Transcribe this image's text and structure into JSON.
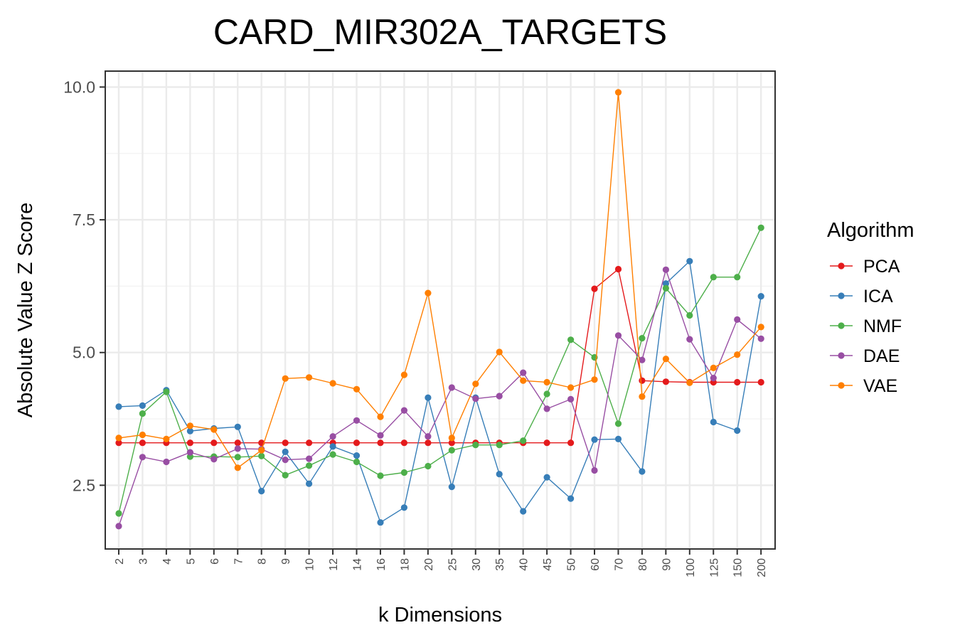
{
  "chart_data": {
    "type": "line",
    "title": "CARD_MIR302A_TARGETS",
    "xlabel": "k Dimensions",
    "ylabel": "Absolute Value Z Score",
    "categories": [
      "2",
      "3",
      "4",
      "5",
      "6",
      "7",
      "8",
      "9",
      "10",
      "12",
      "14",
      "16",
      "18",
      "20",
      "25",
      "30",
      "35",
      "40",
      "45",
      "50",
      "60",
      "70",
      "80",
      "90",
      "100",
      "125",
      "150",
      "200"
    ],
    "yticks": [
      2.5,
      5.0,
      7.5,
      10.0
    ],
    "ytick_labels": [
      "2.5",
      "5.0",
      "7.5",
      "10.0"
    ],
    "ylim": [
      1.3,
      10.3
    ],
    "grid": true,
    "legend": {
      "title": "Algorithm",
      "position": "right"
    },
    "series": [
      {
        "name": "PCA",
        "color": "#e41a1c",
        "values": [
          3.3,
          3.3,
          3.3,
          3.3,
          3.3,
          3.3,
          3.3,
          3.3,
          3.3,
          3.3,
          3.3,
          3.3,
          3.3,
          3.3,
          3.3,
          3.3,
          3.3,
          3.3,
          3.3,
          3.3,
          6.2,
          6.57,
          4.47,
          4.45,
          4.44,
          4.44,
          4.44,
          4.44
        ]
      },
      {
        "name": "ICA",
        "color": "#377eb8",
        "values": [
          3.98,
          4.0,
          4.29,
          3.52,
          3.57,
          3.6,
          2.39,
          3.13,
          2.53,
          3.23,
          3.06,
          1.8,
          2.08,
          4.15,
          2.47,
          4.15,
          2.71,
          2.01,
          2.65,
          2.25,
          3.36,
          3.37,
          2.76,
          6.3,
          6.72,
          3.69,
          3.53,
          6.06
        ]
      },
      {
        "name": "NMF",
        "color": "#4daf4a",
        "values": [
          1.97,
          3.85,
          4.26,
          3.04,
          3.04,
          3.03,
          3.05,
          2.69,
          2.87,
          3.08,
          2.94,
          2.68,
          2.74,
          2.86,
          3.16,
          3.26,
          3.26,
          3.34,
          4.22,
          5.24,
          4.91,
          3.66,
          5.27,
          6.21,
          5.7,
          6.42,
          6.42,
          7.35
        ]
      },
      {
        "name": "DAE",
        "color": "#984ea3",
        "values": [
          1.73,
          3.03,
          2.94,
          3.12,
          2.99,
          3.19,
          3.18,
          2.98,
          3.0,
          3.42,
          3.72,
          3.44,
          3.91,
          3.42,
          4.34,
          4.13,
          4.18,
          4.62,
          3.94,
          4.12,
          2.78,
          5.32,
          4.86,
          6.56,
          5.25,
          4.52,
          5.62,
          5.26
        ]
      },
      {
        "name": "VAE",
        "color": "#ff7f00",
        "values": [
          3.39,
          3.45,
          3.37,
          3.62,
          3.55,
          2.83,
          3.16,
          4.51,
          4.53,
          4.42,
          4.31,
          3.79,
          4.58,
          6.12,
          3.39,
          4.41,
          5.01,
          4.47,
          4.44,
          4.34,
          4.49,
          9.9,
          4.17,
          4.88,
          4.43,
          4.71,
          4.96,
          5.48
        ]
      }
    ]
  }
}
